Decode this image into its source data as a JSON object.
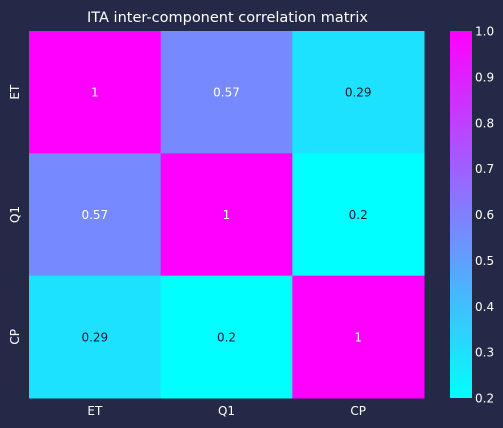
{
  "chart_data": {
    "type": "heatmap",
    "title": "ITA inter-component correlation matrix",
    "x_labels": [
      "ET",
      "Q1",
      "CP"
    ],
    "y_labels": [
      "ET",
      "Q1",
      "CP"
    ],
    "values": [
      [
        1,
        0.57,
        0.29
      ],
      [
        0.57,
        1,
        0.2
      ],
      [
        0.29,
        0.2,
        1
      ]
    ],
    "annotations": [
      [
        "1",
        "0.57",
        "0.29"
      ],
      [
        "0.57",
        "1",
        "0.2"
      ],
      [
        "0.29",
        "0.2",
        "1"
      ]
    ],
    "colorbar": {
      "min": 0.2,
      "max": 1.0,
      "ticks": [
        "0.2",
        "0.3",
        "0.4",
        "0.5",
        "0.6",
        "0.7",
        "0.8",
        "0.9",
        "1.0"
      ],
      "colormap": [
        "#00ffff",
        "#ff00ff"
      ]
    }
  },
  "colors": {
    "background": "#232946",
    "text": "#ffffff",
    "cell_text": "#1a1a2e"
  }
}
